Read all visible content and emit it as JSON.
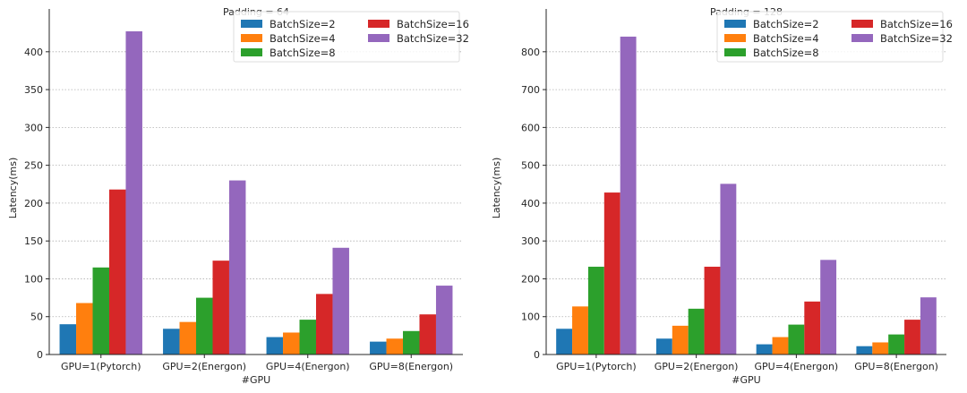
{
  "chart_data": [
    {
      "type": "bar",
      "title": "Padding = 64",
      "xlabel": "#GPU",
      "ylabel": "Latency(ms)",
      "categories": [
        "GPU=1(Pytorch)",
        "GPU=2(Energon)",
        "GPU=4(Energon)",
        "GPU=8(Energon)"
      ],
      "ylim": [
        0,
        440
      ],
      "yticks": [
        0,
        50,
        100,
        150,
        200,
        250,
        300,
        350,
        400
      ],
      "grid": "horizontal dotted",
      "legend_position": "top-right",
      "series": [
        {
          "name": "BatchSize=2",
          "color": "#1f77b4",
          "values": [
            40,
            34,
            23,
            17
          ]
        },
        {
          "name": "BatchSize=4",
          "color": "#ff7f0e",
          "values": [
            68,
            43,
            29,
            21
          ]
        },
        {
          "name": "BatchSize=8",
          "color": "#2ca02c",
          "values": [
            115,
            75,
            46,
            31
          ]
        },
        {
          "name": "BatchSize=16",
          "color": "#d62728",
          "values": [
            218,
            124,
            80,
            53
          ]
        },
        {
          "name": "BatchSize=32",
          "color": "#9467bd",
          "values": [
            427,
            230,
            141,
            91
          ]
        }
      ]
    },
    {
      "type": "bar",
      "title": "Padding = 128",
      "xlabel": "#GPU",
      "ylabel": "Latency(ms)",
      "categories": [
        "GPU=1(Pytorch)",
        "GPU=2(Energon)",
        "GPU=4(Energon)",
        "GPU=8(Energon)"
      ],
      "ylim": [
        0,
        880
      ],
      "yticks": [
        0,
        100,
        200,
        300,
        400,
        500,
        600,
        700,
        800
      ],
      "grid": "horizontal dotted",
      "legend_position": "top-right",
      "series": [
        {
          "name": "BatchSize=2",
          "color": "#1f77b4",
          "values": [
            68,
            42,
            27,
            22
          ]
        },
        {
          "name": "BatchSize=4",
          "color": "#ff7f0e",
          "values": [
            127,
            76,
            46,
            32
          ]
        },
        {
          "name": "BatchSize=8",
          "color": "#2ca02c",
          "values": [
            232,
            121,
            79,
            53
          ]
        },
        {
          "name": "BatchSize=16",
          "color": "#d62728",
          "values": [
            428,
            232,
            140,
            92
          ]
        },
        {
          "name": "BatchSize=32",
          "color": "#9467bd",
          "values": [
            840,
            451,
            250,
            151
          ]
        }
      ]
    }
  ]
}
